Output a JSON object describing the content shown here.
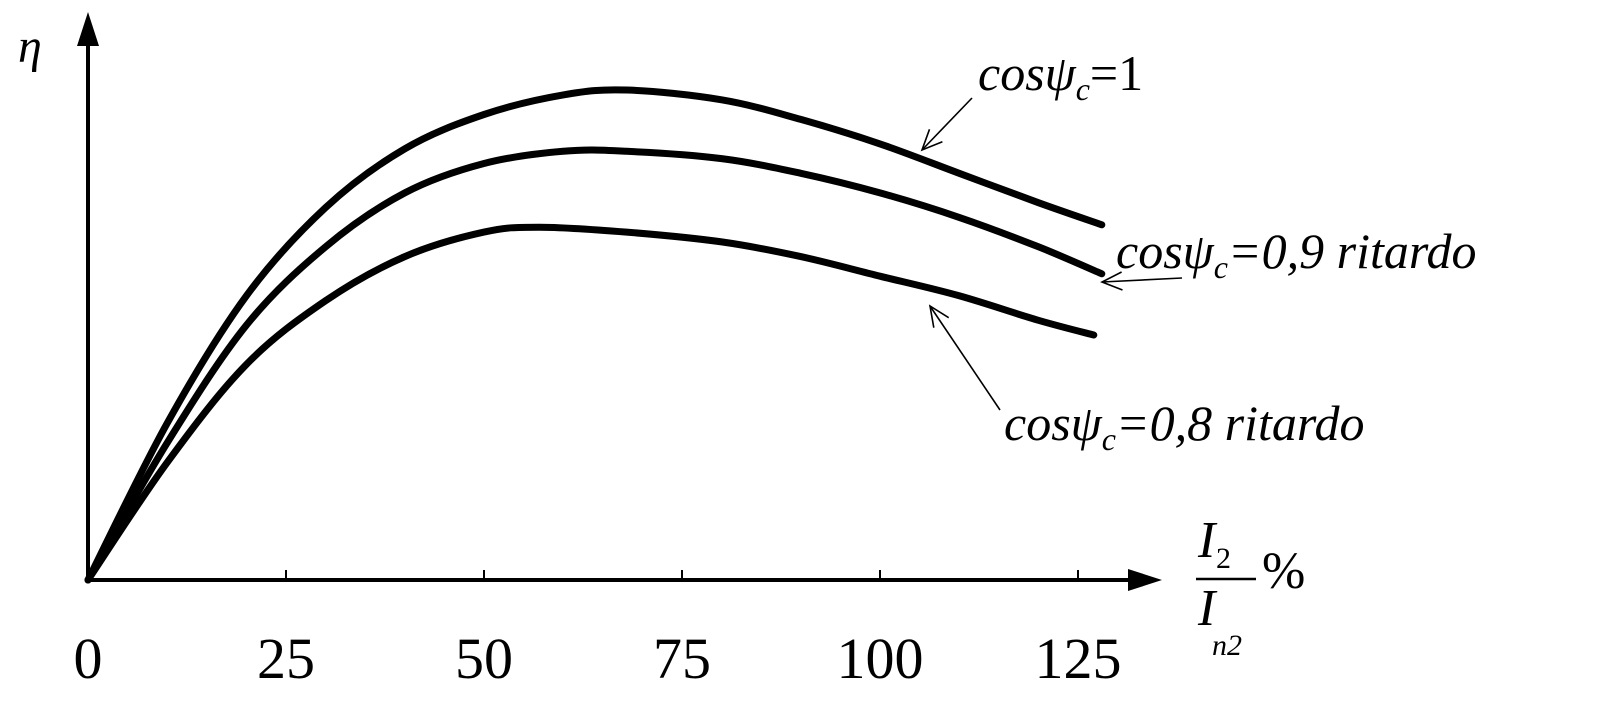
{
  "chart_data": {
    "type": "line",
    "y_axis_symbol": "η",
    "x_axis_label": {
      "numerator": "I",
      "numerator_sub": "2",
      "denominator": "I",
      "denominator_sub": "n2",
      "unit": "%"
    },
    "x_ticks": [
      "0",
      "25",
      "50",
      "75",
      "100",
      "125"
    ],
    "x_tick_values": [
      0,
      25,
      50,
      75,
      100,
      125
    ],
    "xlim": [
      0,
      132
    ],
    "ylim": [
      0,
      1.0
    ],
    "grid": false,
    "legend": "none",
    "series": [
      {
        "label_prefix": "cosψ",
        "label_sub": "c",
        "label_value": "=1",
        "x": [
          0,
          10,
          20,
          30,
          40,
          50,
          60,
          68,
          80,
          90,
          100,
          110,
          120,
          128
        ],
        "y": [
          0,
          0.32,
          0.58,
          0.76,
          0.88,
          0.95,
          0.99,
          1.0,
          0.98,
          0.94,
          0.89,
          0.83,
          0.77,
          0.725
        ]
      },
      {
        "label_prefix": "cosψ",
        "label_sub": "c",
        "label_value": "=0,9 ritardo",
        "x": [
          0,
          10,
          20,
          30,
          40,
          50,
          60,
          68,
          80,
          90,
          100,
          110,
          120,
          128
        ],
        "y": [
          0,
          0.28,
          0.52,
          0.68,
          0.79,
          0.85,
          0.875,
          0.875,
          0.86,
          0.83,
          0.79,
          0.74,
          0.68,
          0.625
        ]
      },
      {
        "label_prefix": "cosψ",
        "label_sub": "c",
        "label_value": "=0,8 ritardo",
        "x": [
          0,
          10,
          20,
          30,
          40,
          50,
          57,
          68,
          80,
          90,
          100,
          110,
          120,
          127
        ],
        "y": [
          0,
          0.24,
          0.44,
          0.57,
          0.66,
          0.71,
          0.72,
          0.71,
          0.69,
          0.66,
          0.62,
          0.58,
          0.53,
          0.5
        ]
      }
    ]
  }
}
